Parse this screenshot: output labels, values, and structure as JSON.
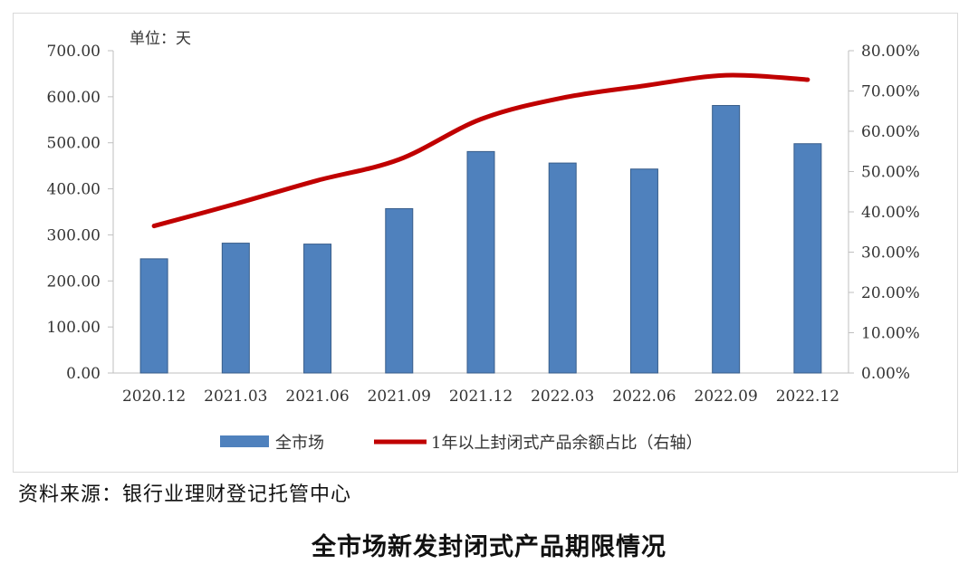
{
  "chart_data": {
    "type": "bar",
    "unit_label": "单位：天",
    "categories": [
      "2020.12",
      "2021.03",
      "2021.06",
      "2021.09",
      "2021.12",
      "2022.03",
      "2022.06",
      "2022.09",
      "2022.12"
    ],
    "series": [
      {
        "name": "全市场",
        "type": "bar",
        "axis": "left",
        "color": "#4f81bd",
        "values": [
          248,
          282,
          280,
          357,
          481,
          456,
          443,
          581,
          498
        ]
      },
      {
        "name": "1年以上封闭式产品余额占比（右轴）",
        "type": "line",
        "axis": "right",
        "color": "#c00000",
        "values": [
          36.5,
          42.0,
          47.8,
          53.0,
          63.0,
          68.3,
          71.3,
          73.9,
          72.8
        ]
      }
    ],
    "y_left": {
      "min": 0,
      "max": 700,
      "step": 100,
      "tick_labels": [
        "0.00",
        "100.00",
        "200.00",
        "300.00",
        "400.00",
        "500.00",
        "600.00",
        "700.00"
      ]
    },
    "y_right": {
      "min": 0,
      "max": 80,
      "step": 10,
      "tick_labels": [
        "0.00%",
        "10.00%",
        "20.00%",
        "30.00%",
        "40.00%",
        "50.00%",
        "60.00%",
        "70.00%",
        "80.00%"
      ]
    },
    "grid": false,
    "legend_position": "bottom"
  },
  "source_note": "资料来源：银行业理财登记托管中心",
  "caption": "全市场新发封闭式产品期限情况"
}
